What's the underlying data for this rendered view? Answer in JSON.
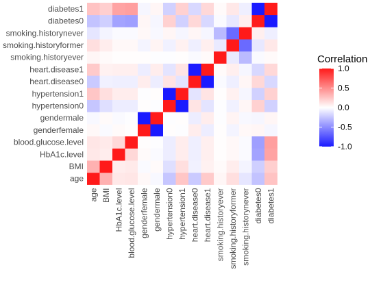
{
  "chart_data": {
    "type": "heatmap",
    "title": "",
    "xlabel": "",
    "ylabel": "",
    "categories": [
      "age",
      "BMI",
      "HbA1c.level",
      "blood.glucose.level",
      "genderfemale",
      "gendermale",
      "hypertension0",
      "hypertension1",
      "heart.disease0",
      "heart.disease1",
      "smoking.historyever",
      "smoking.historyformer",
      "smoking.historynever",
      "diabetes0",
      "diabetes1"
    ],
    "matrix": [
      [
        1.0,
        0.34,
        0.1,
        0.11,
        0.03,
        -0.03,
        -0.25,
        0.25,
        -0.23,
        0.23,
        0.04,
        0.14,
        -0.11,
        -0.26,
        0.26
      ],
      [
        0.34,
        1.0,
        0.08,
        0.09,
        -0.02,
        0.02,
        -0.14,
        0.14,
        -0.06,
        0.06,
        0.02,
        0.08,
        -0.05,
        -0.21,
        0.21
      ],
      [
        0.1,
        0.08,
        1.0,
        0.17,
        0.02,
        -0.02,
        -0.08,
        0.08,
        -0.07,
        0.07,
        0.01,
        0.03,
        -0.02,
        -0.4,
        0.4
      ],
      [
        0.11,
        0.09,
        0.17,
        1.0,
        0.01,
        -0.01,
        -0.08,
        0.08,
        -0.07,
        0.07,
        0.01,
        0.03,
        -0.02,
        -0.42,
        0.42
      ],
      [
        0.03,
        -0.02,
        0.02,
        0.01,
        1.0,
        -1.0,
        0.01,
        -0.01,
        0.08,
        -0.08,
        0.01,
        -0.05,
        0.03,
        0.04,
        -0.04
      ],
      [
        -0.03,
        0.02,
        -0.02,
        -0.01,
        -1.0,
        1.0,
        -0.01,
        0.01,
        -0.08,
        0.08,
        -0.01,
        0.05,
        -0.03,
        -0.04,
        0.04
      ],
      [
        -0.25,
        -0.14,
        -0.08,
        -0.08,
        0.01,
        -0.01,
        1.0,
        -1.0,
        0.12,
        -0.12,
        -0.01,
        -0.06,
        0.04,
        0.2,
        -0.2
      ],
      [
        0.25,
        0.14,
        0.08,
        0.08,
        -0.01,
        0.01,
        -1.0,
        1.0,
        -0.12,
        0.12,
        0.01,
        0.06,
        -0.04,
        -0.2,
        0.2
      ],
      [
        -0.23,
        -0.06,
        -0.07,
        -0.07,
        0.08,
        -0.08,
        0.12,
        -0.12,
        1.0,
        -1.0,
        -0.02,
        -0.07,
        0.04,
        0.17,
        -0.17
      ],
      [
        0.23,
        0.06,
        0.07,
        0.07,
        -0.08,
        0.08,
        -0.12,
        0.12,
        -1.0,
        1.0,
        0.02,
        0.07,
        -0.04,
        -0.17,
        0.17
      ],
      [
        0.04,
        0.02,
        0.01,
        0.01,
        0.01,
        -0.01,
        -0.01,
        0.01,
        -0.02,
        0.02,
        1.0,
        -0.09,
        -0.3,
        -0.02,
        0.02
      ],
      [
        0.14,
        0.08,
        0.03,
        0.03,
        -0.05,
        0.05,
        -0.06,
        0.06,
        -0.07,
        0.07,
        -0.09,
        1.0,
        -0.65,
        -0.1,
        0.1
      ],
      [
        -0.11,
        -0.05,
        -0.02,
        -0.02,
        0.03,
        -0.03,
        0.04,
        -0.04,
        0.04,
        -0.04,
        -0.3,
        -0.65,
        1.0,
        0.07,
        -0.07
      ],
      [
        -0.26,
        -0.21,
        -0.4,
        -0.42,
        0.04,
        -0.04,
        0.2,
        -0.2,
        0.17,
        -0.17,
        -0.02,
        -0.1,
        0.07,
        1.0,
        -1.0
      ],
      [
        0.26,
        0.21,
        0.4,
        0.42,
        -0.04,
        0.04,
        -0.2,
        0.2,
        -0.17,
        0.17,
        0.02,
        0.1,
        -0.07,
        -1.0,
        1.0
      ]
    ],
    "color_scale": {
      "low": "#1a1aff",
      "mid": "#ffffff",
      "high": "#ff1a1a",
      "limits": [
        -1,
        1
      ]
    },
    "legend": {
      "title": "Correlation",
      "ticks": [
        1.0,
        0.5,
        0.0,
        -0.5,
        -1.0
      ],
      "tick_labels": [
        "1.0",
        "0.5",
        "0.0",
        "-0.5",
        "-1.0"
      ],
      "placement": "right"
    },
    "grid": false
  }
}
